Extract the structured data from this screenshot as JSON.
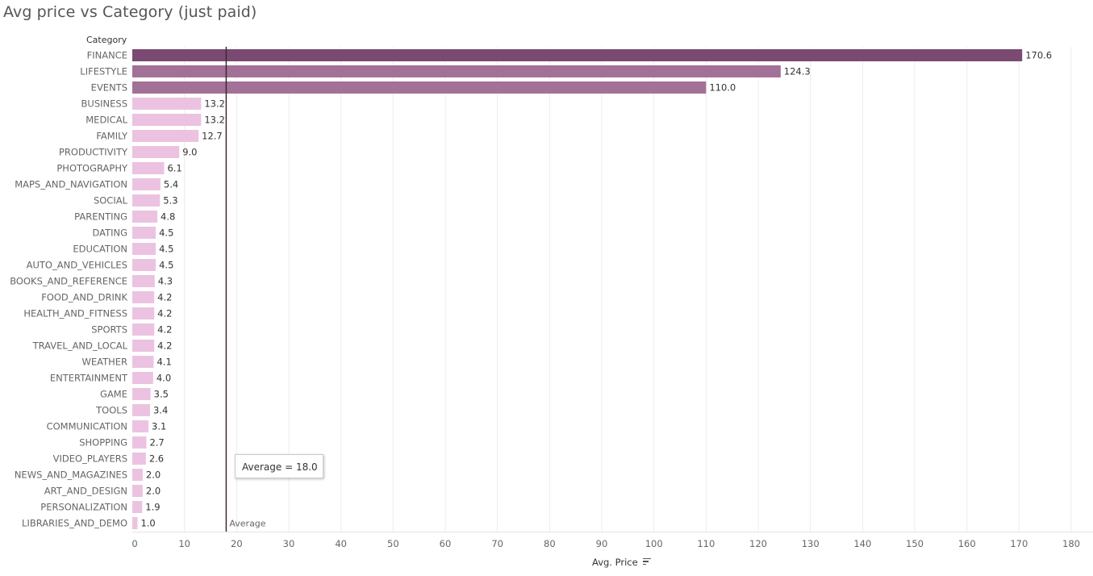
{
  "title": "Avg price vs Category (just paid)",
  "field_header": "Category",
  "reference_line": {
    "label": "Average",
    "tooltip": "Average = 18.0"
  },
  "colors": {
    "high": "#7a4a73",
    "mid": "#a37097",
    "low": "#ecc2e1",
    "refline": "#3a2a33",
    "grid": "#ececec"
  },
  "chart_data": {
    "type": "bar",
    "orientation": "horizontal",
    "title": "Avg price vs Category (just paid)",
    "ylabel": "Category",
    "xlabel": "Avg. Price",
    "xlim": [
      0,
      180
    ],
    "xticks": [
      0,
      10,
      20,
      30,
      40,
      50,
      60,
      70,
      80,
      90,
      100,
      110,
      120,
      130,
      140,
      150,
      160,
      170,
      180
    ],
    "grid": "vertical",
    "average": 18.0,
    "categories": [
      "FINANCE",
      "LIFESTYLE",
      "EVENTS",
      "BUSINESS",
      "MEDICAL",
      "FAMILY",
      "PRODUCTIVITY",
      "PHOTOGRAPHY",
      "MAPS_AND_NAVIGATION",
      "SOCIAL",
      "PARENTING",
      "DATING",
      "EDUCATION",
      "AUTO_AND_VEHICLES",
      "BOOKS_AND_REFERENCE",
      "FOOD_AND_DRINK",
      "HEALTH_AND_FITNESS",
      "SPORTS",
      "TRAVEL_AND_LOCAL",
      "WEATHER",
      "ENTERTAINMENT",
      "GAME",
      "TOOLS",
      "COMMUNICATION",
      "SHOPPING",
      "VIDEO_PLAYERS",
      "NEWS_AND_MAGAZINES",
      "ART_AND_DESIGN",
      "PERSONALIZATION",
      "LIBRARIES_AND_DEMO"
    ],
    "values": [
      170.6,
      124.3,
      110.0,
      13.2,
      13.2,
      12.7,
      9.0,
      6.1,
      5.4,
      5.3,
      4.8,
      4.5,
      4.5,
      4.5,
      4.3,
      4.2,
      4.2,
      4.2,
      4.2,
      4.1,
      4.0,
      3.5,
      3.4,
      3.1,
      2.7,
      2.6,
      2.0,
      2.0,
      1.9,
      1.0
    ],
    "value_labels": [
      "170.6",
      "124.3",
      "110.0",
      "13.2",
      "13.2",
      "12.7",
      "9.0",
      "6.1",
      "5.4",
      "5.3",
      "4.8",
      "4.5",
      "4.5",
      "4.5",
      "4.3",
      "4.2",
      "4.2",
      "4.2",
      "4.2",
      "4.1",
      "4.0",
      "3.5",
      "3.4",
      "3.1",
      "2.7",
      "2.6",
      "2.0",
      "2.0",
      "1.9",
      "1.0"
    ]
  }
}
